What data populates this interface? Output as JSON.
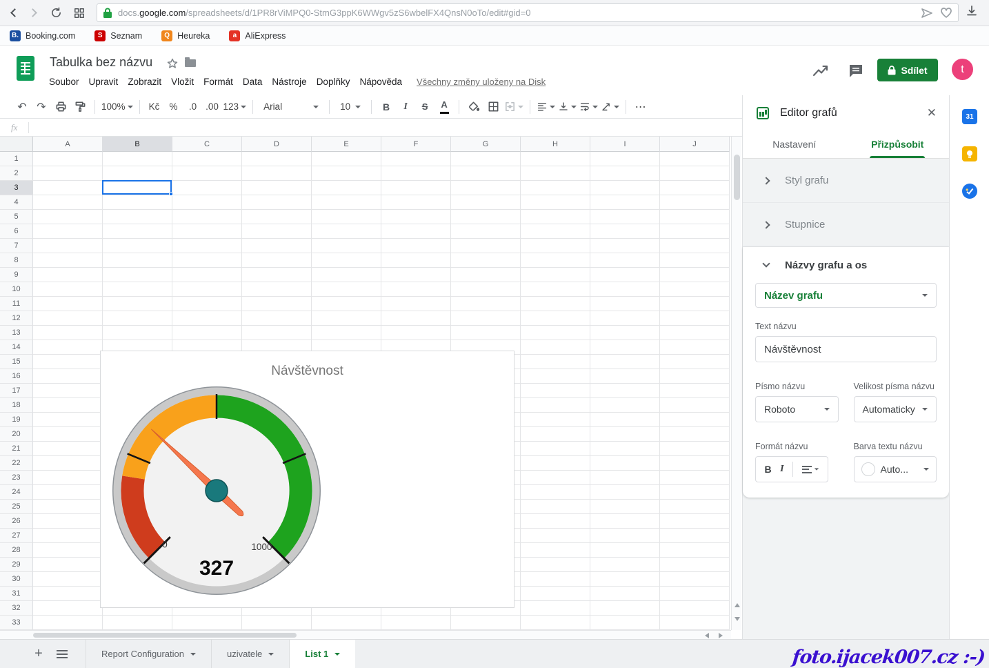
{
  "browser": {
    "url_subdomain": "docs.",
    "url_domain": "google.com",
    "url_path": "/spreadsheets/d/1PR8rViMPQ0-StmG3ppK6WWgv5zS6wbelFX4QnsN0oTo/edit#gid=0",
    "bookmarks": [
      {
        "label": "Booking.com",
        "badge": "B.",
        "color": "#1a4fa0"
      },
      {
        "label": "Seznam",
        "badge": "S",
        "color": "#cc0000"
      },
      {
        "label": "Heureka",
        "badge": "Q",
        "color": "#f0861c"
      },
      {
        "label": "AliExpress",
        "badge": "a",
        "color": "#e43225"
      }
    ]
  },
  "header": {
    "title": "Tabulka bez názvu",
    "menus": [
      "Soubor",
      "Upravit",
      "Zobrazit",
      "Vložit",
      "Formát",
      "Data",
      "Nástroje",
      "Doplňky",
      "Nápověda"
    ],
    "save_status": "Všechny změny uloženy na Disk",
    "share_label": "Sdílet",
    "share_color": "#188038",
    "avatar_letter": "t",
    "avatar_color": "#ec407a"
  },
  "toolbar": {
    "zoom": "100%",
    "currency": "Kč",
    "percent": "%",
    "decimal_decrease": ".0",
    "decimal_increase": ".00",
    "more_formats": "123",
    "font": "Arial",
    "font_size": "10",
    "bold": "B",
    "italic": "I",
    "strikethrough": "S",
    "text_color": "A",
    "more": "⋯"
  },
  "formula_bar": {
    "label": "fx"
  },
  "grid": {
    "columns": [
      "A",
      "B",
      "C",
      "D",
      "E",
      "F",
      "G",
      "H",
      "I",
      "J"
    ],
    "rows": [
      1,
      2,
      3,
      4,
      5,
      6,
      7,
      8,
      9,
      10,
      11,
      12,
      13,
      14,
      15,
      16,
      17,
      18,
      19,
      20,
      21,
      22,
      23,
      24,
      25,
      26,
      27,
      28,
      29,
      30,
      31,
      32,
      33
    ],
    "selected_column": "B",
    "selected_row": 3,
    "selection_color": "#1a73e8"
  },
  "chart_data": {
    "type": "gauge",
    "title": "Návštěvnost",
    "min": 0,
    "max": 1000,
    "value": 327,
    "value_label": "327",
    "start_angle": -135,
    "end_angle": 135,
    "tick_values": [
      0,
      250,
      500,
      750,
      1000
    ],
    "tick_labels": [
      "0",
      "1000"
    ],
    "bands": [
      {
        "from": 0,
        "to": 200,
        "color": "#cf3c1d"
      },
      {
        "from": 200,
        "to": 500,
        "color": "#f9a11b"
      },
      {
        "from": 500,
        "to": 1000,
        "color": "#1ea31e"
      }
    ],
    "needle_color": "#f5774e",
    "hub_color": "#19797c",
    "ring_color": "#c9c9c9",
    "face_color": "#f2f2f2"
  },
  "chart_editor": {
    "panel_title": "Editor grafů",
    "accent_color": "#188038",
    "tabs": [
      {
        "label": "Nastavení",
        "active": false
      },
      {
        "label": "Přizpůsobit",
        "active": true
      }
    ],
    "collapsed_sections": [
      "Styl grafu",
      "Stupnice"
    ],
    "expanded_section": "Názvy grafu a os",
    "title_type_value": "Název grafu",
    "title_text_label": "Text názvu",
    "title_text_value": "Návštěvnost",
    "font_label": "Písmo názvu",
    "font_value": "Roboto",
    "font_size_label": "Velikost písma názvu",
    "font_size_value": "Automaticky",
    "format_label": "Formát názvu",
    "format_bold": "B",
    "format_italic": "I",
    "color_label": "Barva textu názvu",
    "color_value": "Auto..."
  },
  "sheet_tabs": {
    "tabs": [
      {
        "label": "Report Configuration",
        "active": false
      },
      {
        "label": "uzivatele",
        "active": false
      },
      {
        "label": "List 1",
        "active": true
      }
    ]
  },
  "side_panel": {
    "icons": [
      {
        "name": "calendar",
        "label": "31",
        "color": "#1a73e8",
        "shape": "square"
      },
      {
        "name": "keep",
        "label": "",
        "color": "#f5b400",
        "shape": "square"
      },
      {
        "name": "tasks",
        "label": "",
        "color": "#1a73e8",
        "shape": "circle"
      }
    ]
  },
  "watermark": {
    "text": "foto.ijacek007.cz :-)",
    "color": "#3a10d0"
  }
}
